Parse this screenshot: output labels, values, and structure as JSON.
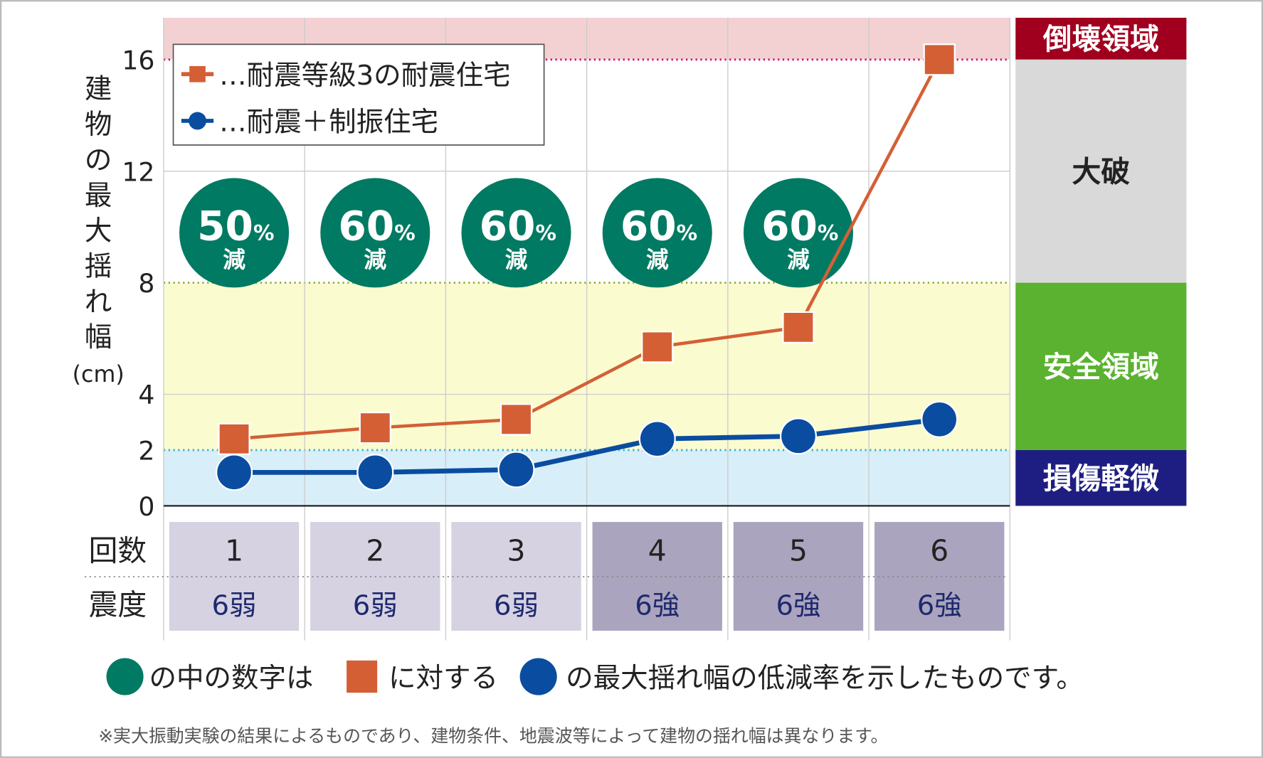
{
  "chart_data": {
    "type": "line",
    "ylabel": "建物の最大揺れ幅(cm)",
    "ylabel_chars": [
      "建",
      "物",
      "の",
      "最",
      "大",
      "揺",
      "れ",
      "幅",
      "(cm)"
    ],
    "yticks": [
      0,
      2,
      4,
      8,
      12,
      16
    ],
    "ylim": [
      0,
      17.5
    ],
    "grid": true,
    "legend_placement": "top-left",
    "categories": [
      "1",
      "2",
      "3",
      "4",
      "5",
      "6"
    ],
    "row_label_count": "回数",
    "row_label_intensity": "震度",
    "intensity": [
      "6弱",
      "6弱",
      "6弱",
      "6強",
      "6強",
      "6強"
    ],
    "series": [
      {
        "name": "…耐震等級3の耐震住宅",
        "marker": "square",
        "color": "#d45f35",
        "values": [
          2.4,
          2.8,
          3.1,
          5.7,
          6.4,
          16
        ]
      },
      {
        "name": "…耐震＋制振住宅",
        "marker": "circle",
        "color": "#0a4da0",
        "values": [
          1.2,
          1.2,
          1.3,
          2.4,
          2.5,
          3.1
        ]
      }
    ],
    "reduction_badges": [
      {
        "percent": "50",
        "unit": "%",
        "label": "減"
      },
      {
        "percent": "60",
        "unit": "%",
        "label": "減"
      },
      {
        "percent": "60",
        "unit": "%",
        "label": "減"
      },
      {
        "percent": "60",
        "unit": "%",
        "label": "減"
      },
      {
        "percent": "60",
        "unit": "%",
        "label": "減"
      }
    ],
    "zones": [
      {
        "label": "倒壊領域",
        "from": 16,
        "to": 17.5,
        "color": "#a0001e",
        "bg": "#f3d1d3",
        "line": "#d0105a"
      },
      {
        "label": "大破",
        "from": 8,
        "to": 16,
        "color": "#d9d9d9",
        "bg": "#ffffff",
        "line": "#8ab030"
      },
      {
        "label": "安全領域",
        "from": 2,
        "to": 8,
        "color": "#5ab230",
        "bg": "#fbfbd0",
        "line": "#40b0c0"
      },
      {
        "label": "損傷軽微",
        "from": 0,
        "to": 2,
        "color": "#1e1e82",
        "bg": "#d8eef9",
        "line": null
      }
    ],
    "badge_color": "#007a62",
    "caption": {
      "part1": "の中の数字は",
      "part2": "に対する",
      "part3": "の最大揺れ幅の低減率を示したものです。"
    },
    "note": "※実大振動実験の結果によるものであり、建物条件、地震波等によって建物の揺れ幅は異なります。"
  }
}
